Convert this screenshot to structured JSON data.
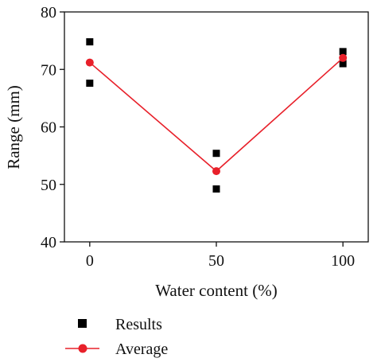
{
  "chart_data": {
    "type": "scatter",
    "xlabel": "Water content (%)",
    "ylabel": "Range (mm)",
    "xlim": [
      -10,
      110
    ],
    "ylim": [
      40,
      80
    ],
    "xticks": [
      0,
      50,
      100
    ],
    "yticks": [
      40,
      50,
      60,
      70,
      80
    ],
    "grid": false,
    "legend_position": "bottom",
    "series": [
      {
        "name": "Results",
        "marker": "square",
        "color": "#000000",
        "points": [
          {
            "x": 0,
            "y": 74.8
          },
          {
            "x": 0,
            "y": 67.6
          },
          {
            "x": 50,
            "y": 55.4
          },
          {
            "x": 50,
            "y": 49.2
          },
          {
            "x": 100,
            "y": 73.1
          },
          {
            "x": 100,
            "y": 71.0
          }
        ]
      },
      {
        "name": "Average",
        "marker": "circle",
        "line": true,
        "color": "#e8202a",
        "points": [
          {
            "x": 0,
            "y": 71.2
          },
          {
            "x": 50,
            "y": 52.3
          },
          {
            "x": 100,
            "y": 72.0
          }
        ]
      }
    ]
  }
}
